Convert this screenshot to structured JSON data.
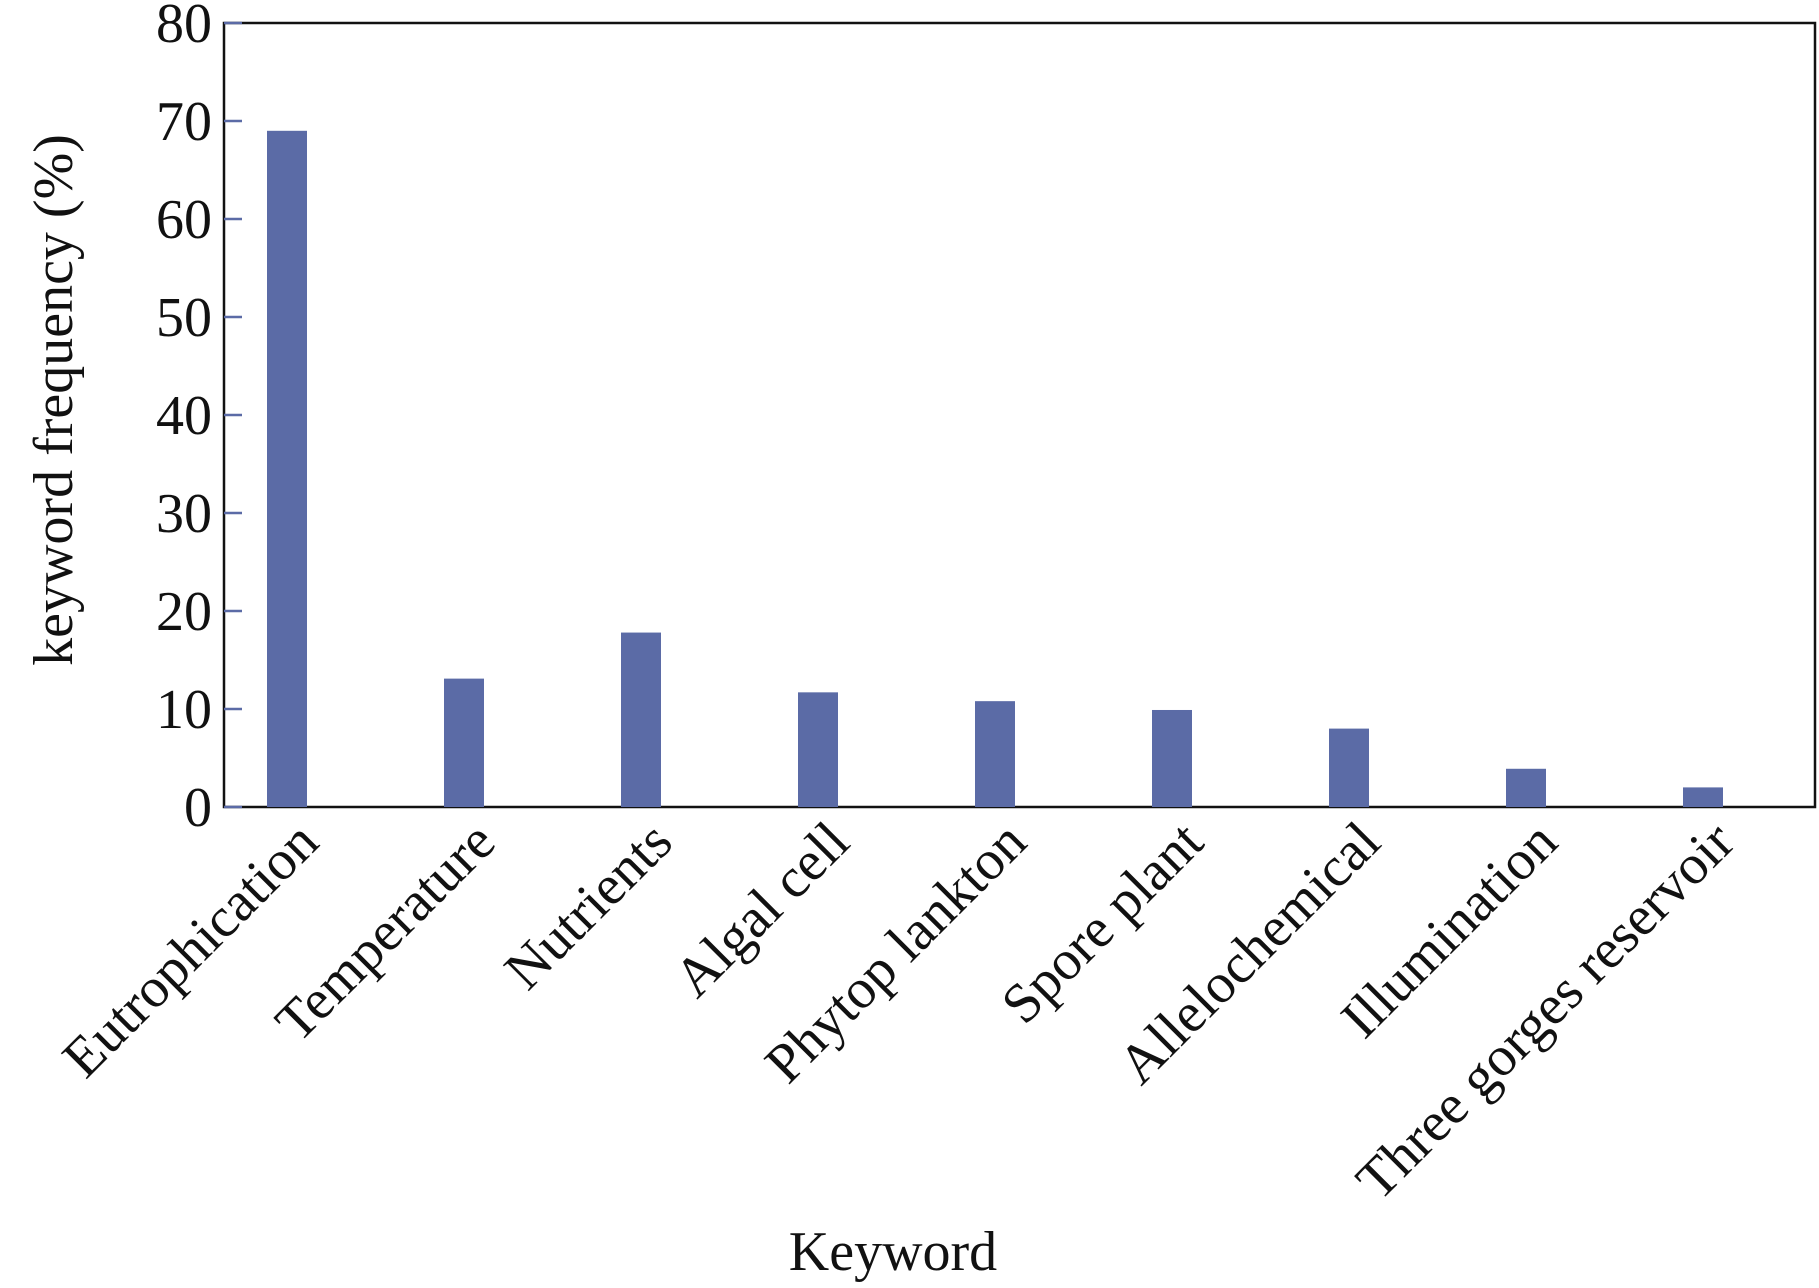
{
  "chart_data": {
    "type": "bar",
    "x_label": "Keyword",
    "y_label": "keyword frequency (%)",
    "categories": [
      "Eutrophication",
      "Temperature",
      "Nutrients",
      "Algal cell",
      "Phytop lankton",
      "Spore plant",
      "Allelochemical",
      "Illumination",
      "Three gorges reservoir"
    ],
    "values": [
      69,
      13.1,
      17.8,
      11.7,
      10.8,
      9.9,
      8.0,
      3.9,
      2.0
    ],
    "color": "#5b6ba6",
    "ylim": [
      0,
      80
    ],
    "yticks": [
      0,
      10,
      20,
      30,
      40,
      50,
      60,
      70,
      80
    ],
    "grid": false
  }
}
